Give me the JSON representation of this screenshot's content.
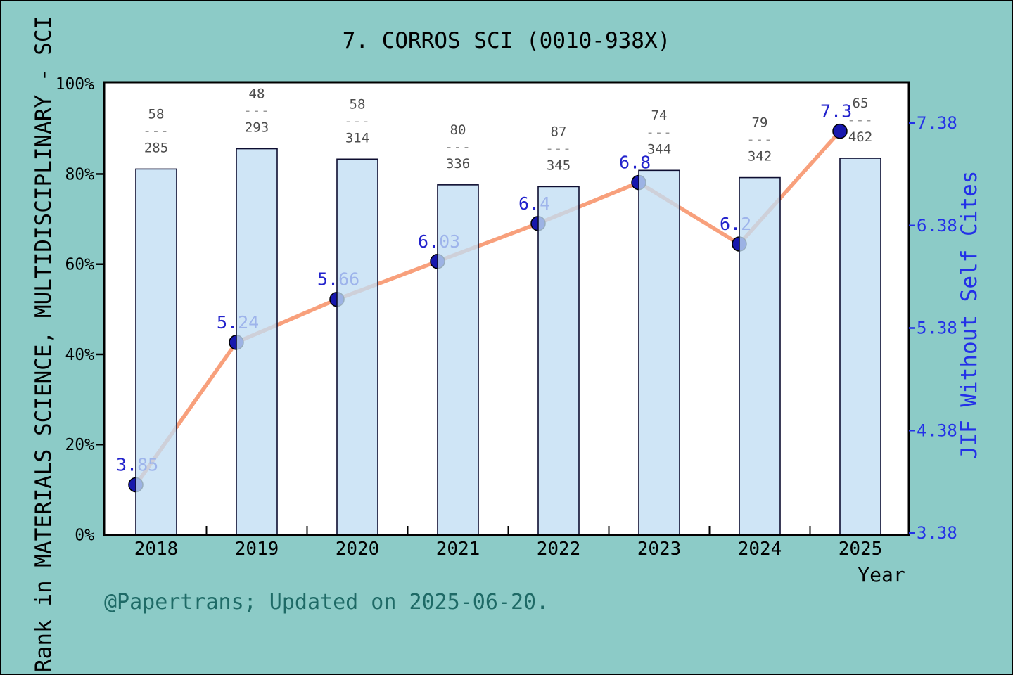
{
  "figure": {
    "title": "7. CORROS SCI (0010-938X)",
    "caption": "@Papertrans; Updated on 2025-06-20.",
    "x_axis_label": "Year",
    "y_left_label": "Rank in MATERIALS SCIENCE, MULTIDISCIPLINARY - SCI",
    "y_right_label": "JIF Without Self Cites"
  },
  "colors": {
    "background": "#8ccbc7",
    "plot_background": "#ffffff",
    "frame": "#000000",
    "bar_fill": "#c1def4",
    "bar_fill_opacity": "0.78",
    "bar_border": "#0d0d30",
    "line": "#f8a07c",
    "marker_fill": "#1717ad",
    "marker_edge": "#000000",
    "value_label": "#2222cc",
    "axis_blue": "#2330e8",
    "fraction_text": "#4c4c4c",
    "fraction_dash": "#999999",
    "caption_text": "#1e6a66"
  },
  "chart_data": {
    "type": "bar+line combo",
    "title": "7. CORROS SCI (0010-938X)",
    "categories": [
      "2018",
      "2019",
      "2020",
      "2021",
      "2022",
      "2023",
      "2024",
      "2025"
    ],
    "bar_series": {
      "name": "Rank in MATERIALS SCIENCE, MULTIDISCIPLINARY - SCI",
      "axis": "left",
      "unit": "percent of axis (bar height, est.)",
      "values_pct": [
        81.1,
        85.6,
        83.3,
        77.6,
        77.2,
        80.8,
        79.2,
        83.5
      ],
      "rank_labels": [
        {
          "rank": "58",
          "total": "285"
        },
        {
          "rank": "48",
          "total": "293"
        },
        {
          "rank": "58",
          "total": "314"
        },
        {
          "rank": "80",
          "total": "336"
        },
        {
          "rank": "87",
          "total": "345"
        },
        {
          "rank": "74",
          "total": "344"
        },
        {
          "rank": "79",
          "total": "342"
        },
        {
          "rank": "65",
          "total": "462"
        }
      ],
      "fraction_dash": "---"
    },
    "line_series": {
      "name": "JIF Without Self Cites",
      "axis": "right",
      "values": [
        3.85,
        5.24,
        5.66,
        6.03,
        6.4,
        6.8,
        6.2,
        7.3
      ],
      "point_labels": [
        "3.85",
        "5.24",
        "5.66",
        "6.03",
        "6.4",
        "6.8",
        "6.2",
        "7.3"
      ]
    },
    "left_axis": {
      "ticks": [
        "0%",
        "20%",
        "40%",
        "60%",
        "80%",
        "100%"
      ],
      "range": [
        0,
        100
      ]
    },
    "right_axis": {
      "ticks": [
        "3.38",
        "4.38",
        "5.38",
        "6.38",
        "7.38"
      ],
      "range": [
        3.38,
        7.38
      ],
      "label": "JIF Without Self Cites"
    },
    "xlabel": "Year",
    "ylabel": "Rank in MATERIALS SCIENCE, MULTIDISCIPLINARY - SCI",
    "grid": false,
    "legend": "none"
  }
}
